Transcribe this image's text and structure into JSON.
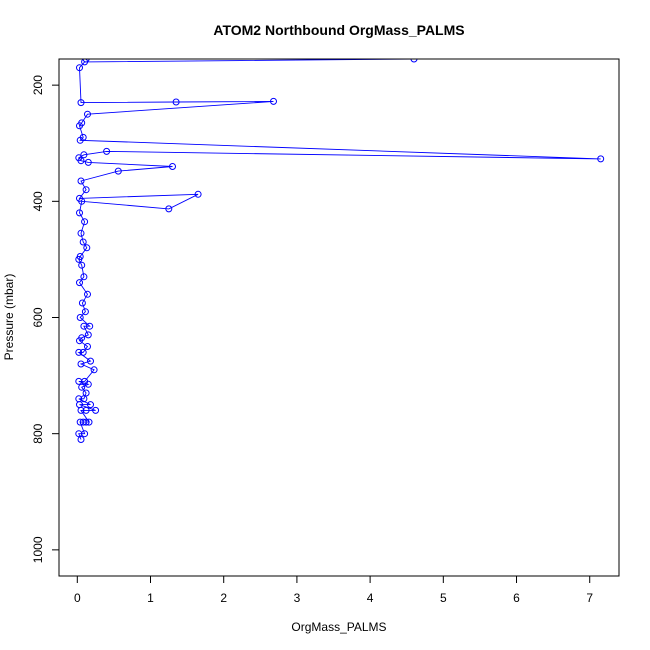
{
  "chart_data": {
    "type": "line",
    "title": "ATOM2 Northbound OrgMass_PALMS",
    "xlabel": "OrgMass_PALMS",
    "ylabel": "Pressure (mbar)",
    "xlim": [
      -0.25,
      7.4
    ],
    "ylim": [
      1045,
      155
    ],
    "y_reversed": true,
    "x_ticks": [
      0,
      1,
      2,
      3,
      4,
      5,
      6,
      7
    ],
    "y_ticks": [
      200,
      400,
      600,
      800,
      1000
    ],
    "grid": false,
    "legend": "none",
    "series": [
      {
        "color": "#0000ff",
        "marker": "open-circle",
        "points": [
          [
            0.05,
            810
          ],
          [
            0.02,
            800
          ],
          [
            0.1,
            800
          ],
          [
            0.04,
            780
          ],
          [
            0.08,
            780
          ],
          [
            0.12,
            780
          ],
          [
            0.16,
            780
          ],
          [
            0.05,
            760
          ],
          [
            0.12,
            760
          ],
          [
            0.25,
            760
          ],
          [
            0.03,
            750
          ],
          [
            0.18,
            750
          ],
          [
            0.02,
            740
          ],
          [
            0.09,
            740
          ],
          [
            0.12,
            730
          ],
          [
            0.06,
            720
          ],
          [
            0.15,
            715
          ],
          [
            0.02,
            710
          ],
          [
            0.1,
            710
          ],
          [
            0.23,
            690
          ],
          [
            0.05,
            680
          ],
          [
            0.18,
            675
          ],
          [
            0.02,
            660
          ],
          [
            0.08,
            660
          ],
          [
            0.14,
            650
          ],
          [
            0.03,
            640
          ],
          [
            0.06,
            635
          ],
          [
            0.15,
            630
          ],
          [
            0.09,
            615
          ],
          [
            0.17,
            615
          ],
          [
            0.04,
            600
          ],
          [
            0.11,
            590
          ],
          [
            0.07,
            575
          ],
          [
            0.14,
            560
          ],
          [
            0.03,
            540
          ],
          [
            0.09,
            530
          ],
          [
            0.06,
            510
          ],
          [
            0.02,
            500
          ],
          [
            0.04,
            495
          ],
          [
            0.13,
            480
          ],
          [
            0.08,
            470
          ],
          [
            0.05,
            455
          ],
          [
            0.1,
            435
          ],
          [
            0.03,
            420
          ],
          [
            0.06,
            400
          ],
          [
            1.25,
            413
          ],
          [
            1.65,
            388
          ],
          [
            0.03,
            395
          ],
          [
            0.12,
            380
          ],
          [
            0.05,
            365
          ],
          [
            0.56,
            348
          ],
          [
            1.3,
            340
          ],
          [
            0.15,
            333
          ],
          [
            0.05,
            330
          ],
          [
            0.02,
            325
          ],
          [
            0.09,
            320
          ],
          [
            0.4,
            314
          ],
          [
            7.15,
            327
          ],
          [
            0.04,
            295
          ],
          [
            0.08,
            290
          ],
          [
            0.03,
            270
          ],
          [
            0.06,
            265
          ],
          [
            0.14,
            250
          ],
          [
            2.68,
            228
          ],
          [
            1.35,
            229
          ],
          [
            0.05,
            230
          ],
          [
            0.03,
            170
          ],
          [
            0.1,
            160
          ],
          [
            4.6,
            155
          ],
          [
            0.12,
            155
          ]
        ]
      }
    ]
  }
}
